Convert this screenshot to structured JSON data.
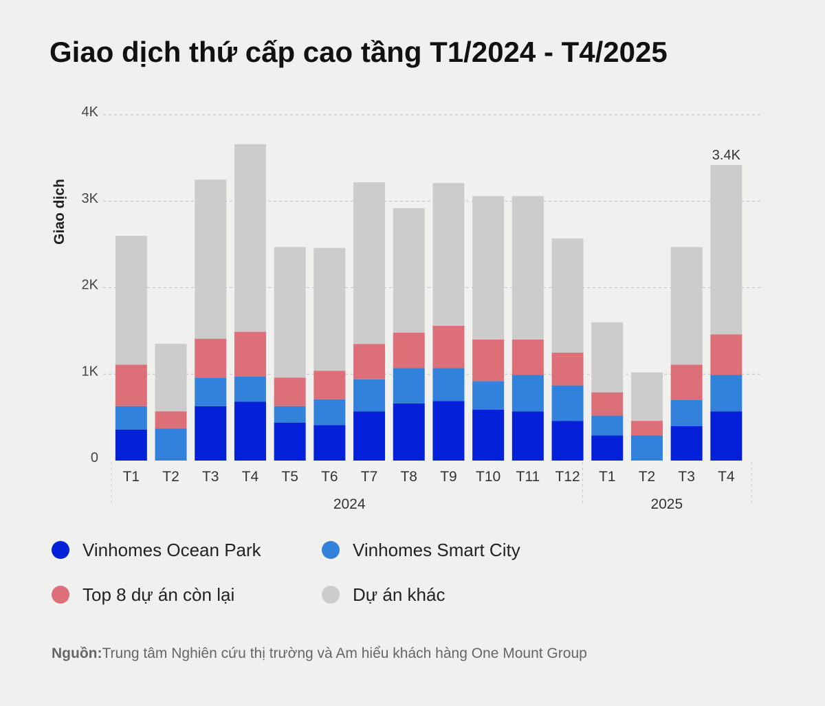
{
  "chart_data": {
    "type": "bar",
    "stacked": true,
    "title": "Giao dịch thứ cấp cao tầng T1/2024 - T4/2025",
    "ylabel": "Giao dịch",
    "xlabel": "",
    "ylim": [
      0,
      4000
    ],
    "yticks": [
      {
        "value": 0,
        "label": "0"
      },
      {
        "value": 1000,
        "label": "1K"
      },
      {
        "value": 2000,
        "label": "2K"
      },
      {
        "value": 3000,
        "label": "3K"
      },
      {
        "value": 4000,
        "label": "4K"
      }
    ],
    "grid": true,
    "legend_position": "bottom",
    "categories": [
      "T1",
      "T2",
      "T3",
      "T4",
      "T5",
      "T6",
      "T7",
      "T8",
      "T9",
      "T10",
      "T11",
      "T12",
      "T1",
      "T2",
      "T3",
      "T4"
    ],
    "groups": [
      {
        "label": "2024",
        "count": 12
      },
      {
        "label": "2025",
        "count": 4
      }
    ],
    "series": [
      {
        "name": "Vinhomes Ocean Park",
        "color": "#0420d8",
        "values": [
          360,
          0,
          630,
          680,
          440,
          410,
          570,
          660,
          690,
          590,
          570,
          460,
          290,
          0,
          400,
          570
        ]
      },
      {
        "name": "Vinhomes Smart City",
        "color": "#3282dc",
        "values": [
          270,
          370,
          330,
          290,
          190,
          300,
          370,
          410,
          380,
          330,
          420,
          410,
          230,
          290,
          300,
          420
        ]
      },
      {
        "name": "Top 8 dự án còn lại",
        "color": "#dd6f79",
        "values": [
          480,
          200,
          450,
          520,
          330,
          330,
          410,
          410,
          490,
          480,
          410,
          380,
          270,
          170,
          410,
          470
        ]
      },
      {
        "name": "Dự án khác",
        "color": "#cccccc",
        "values": [
          1490,
          780,
          1840,
          2170,
          1510,
          1420,
          1870,
          1440,
          1650,
          1660,
          1660,
          1320,
          810,
          560,
          1360,
          1960
        ]
      }
    ],
    "annotations": [
      {
        "category_index": 15,
        "label": "3.4K"
      }
    ]
  },
  "source": {
    "label": "Nguồn:",
    "text": "Trung tâm Nghiên cứu thị trường và Am hiểu khách hàng One Mount Group"
  }
}
